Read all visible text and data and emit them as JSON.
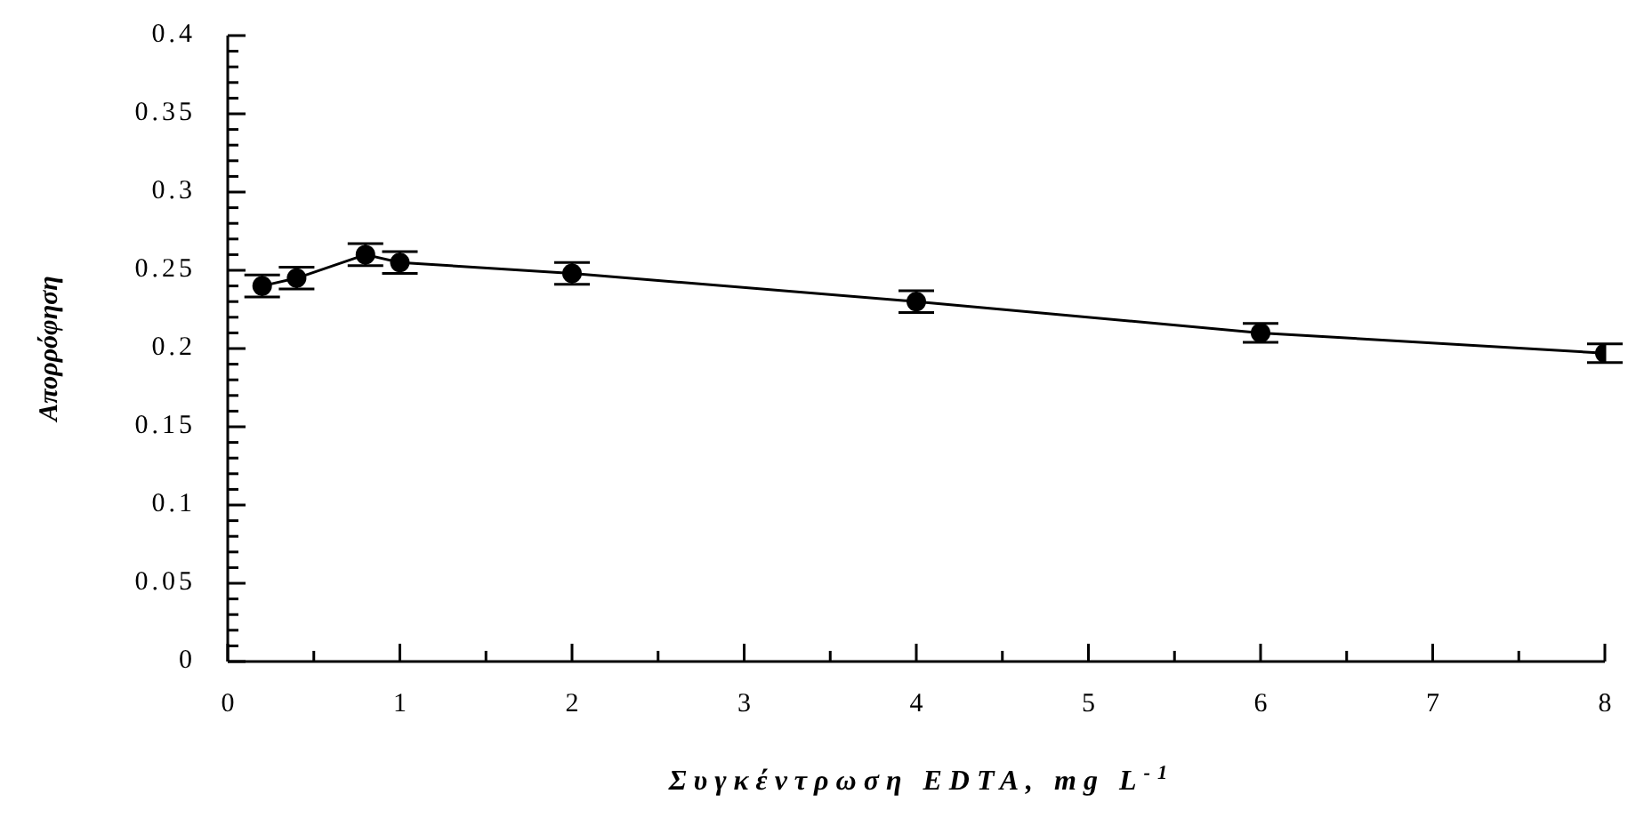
{
  "chart_data": {
    "type": "line",
    "xlabel": "Συγκέντρωση EDTA, mg L$^{-1}$",
    "ylabel": "Απορρόφηση",
    "x": [
      0.2,
      0.4,
      0.8,
      1,
      2,
      4,
      6,
      8
    ],
    "values": [
      0.24,
      0.245,
      0.26,
      0.255,
      0.248,
      0.23,
      0.21,
      0.197
    ],
    "errors": [
      0.007,
      0.007,
      0.007,
      0.007,
      0.007,
      0.007,
      0.006,
      0.006
    ],
    "color": "#000000",
    "marker": "circle",
    "line_style": "solid",
    "grid": false,
    "xlim": [
      0,
      8
    ],
    "ylim": [
      0,
      0.4
    ],
    "xticks": [
      0,
      {
        "value": 0.5,
        "label": null
      },
      1,
      {
        "value": 1.5,
        "label": null
      },
      2,
      {
        "value": 2.5,
        "label": null
      },
      3,
      {
        "value": 3.5,
        "label": null
      },
      4,
      {
        "value": 4.5,
        "label": null
      },
      5,
      {
        "value": 5.5,
        "label": null
      },
      6,
      {
        "value": 6.5,
        "label": null
      },
      7,
      {
        "value": 7.5,
        "label": null
      },
      8
    ],
    "yticks": [
      0,
      {
        "value": 0.01,
        "label": null
      },
      {
        "value": 0.02,
        "label": null
      },
      {
        "value": 0.03,
        "label": null
      },
      {
        "value": 0.04,
        "label": null
      },
      0.05,
      {
        "value": 0.06,
        "label": null
      },
      {
        "value": 0.07,
        "label": null
      },
      {
        "value": 0.08,
        "label": null
      },
      {
        "value": 0.09,
        "label": null
      },
      0.1,
      {
        "value": 0.11,
        "label": null
      },
      {
        "value": 0.12,
        "label": null
      },
      {
        "value": 0.13,
        "label": null
      },
      {
        "value": 0.14,
        "label": null
      },
      0.15,
      {
        "value": 0.16,
        "label": null
      },
      {
        "value": 0.17,
        "label": null
      },
      {
        "value": 0.18,
        "label": null
      },
      {
        "value": 0.19,
        "label": null
      },
      0.2,
      {
        "value": 0.21,
        "label": null
      },
      {
        "value": 0.22,
        "label": null
      },
      {
        "value": 0.23,
        "label": null
      },
      {
        "value": 0.24,
        "label": null
      },
      0.25,
      {
        "value": 0.26,
        "label": null
      },
      {
        "value": 0.27,
        "label": null
      },
      {
        "value": 0.28,
        "label": null
      },
      {
        "value": 0.29,
        "label": null
      },
      0.3,
      {
        "value": 0.31,
        "label": null
      },
      {
        "value": 0.32,
        "label": null
      },
      {
        "value": 0.33,
        "label": null
      },
      {
        "value": 0.34,
        "label": null
      },
      0.35,
      {
        "value": 0.36,
        "label": null
      },
      {
        "value": 0.37,
        "label": null
      },
      {
        "value": 0.38,
        "label": null
      },
      {
        "value": 0.39,
        "label": null
      },
      0.4
    ]
  }
}
